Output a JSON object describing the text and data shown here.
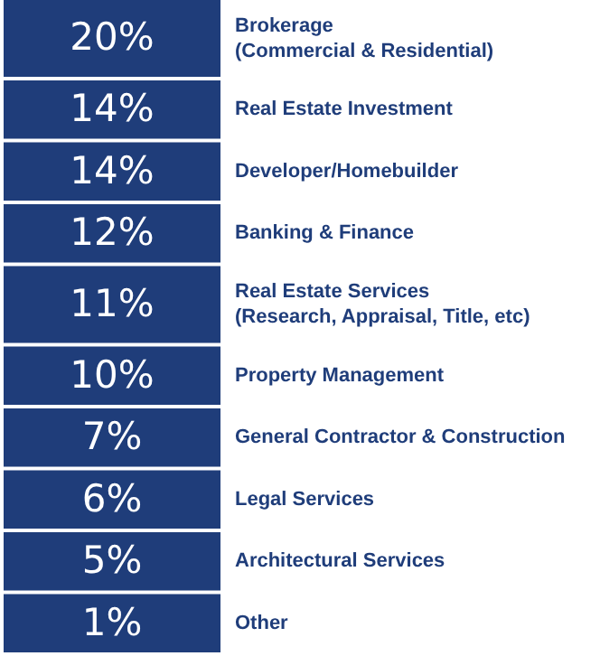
{
  "chart_data": {
    "type": "other",
    "categories": [
      "Brokerage\n(Commercial & Residential)",
      "Real Estate Investment",
      "Developer/Homebuilder",
      "Banking & Finance",
      "Real Estate Services\n(Research, Appraisal, Title, etc)",
      "Property Management",
      "General Contractor & Construction",
      "Legal Services",
      "Architectural Services",
      "Other"
    ],
    "values": [
      20,
      14,
      14,
      12,
      11,
      10,
      7,
      6,
      5,
      1
    ],
    "color": "#1f3d7a",
    "value_labels": [
      "20%",
      "14%",
      "14%",
      "12%",
      "11%",
      "10%",
      "7%",
      "6%",
      "5%",
      "1%"
    ]
  }
}
